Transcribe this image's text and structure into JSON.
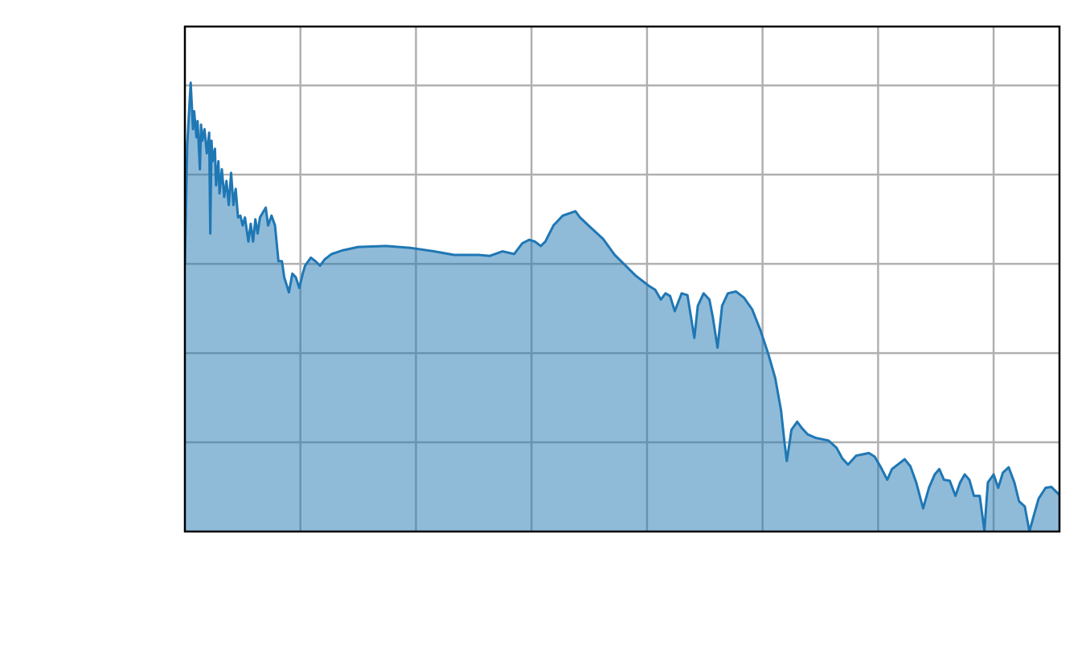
{
  "chart_data": {
    "type": "area",
    "color": "#1f77b4",
    "grid": true,
    "xlim": [
      0,
      7.57
    ],
    "ylim": [
      0,
      5.66
    ],
    "xticks": [
      1,
      2,
      3,
      4,
      5,
      6,
      7
    ],
    "yticks": [
      1,
      2,
      3,
      4,
      5
    ],
    "x": [
      0,
      0.02,
      0.05,
      0.07,
      0.08,
      0.1,
      0.11,
      0.13,
      0.14,
      0.15,
      0.17,
      0.19,
      0.21,
      0.22,
      0.23,
      0.24,
      0.26,
      0.27,
      0.29,
      0.3,
      0.32,
      0.34,
      0.36,
      0.38,
      0.4,
      0.42,
      0.44,
      0.46,
      0.48,
      0.5,
      0.52,
      0.55,
      0.57,
      0.59,
      0.61,
      0.63,
      0.65,
      0.7,
      0.72,
      0.75,
      0.78,
      0.81,
      0.84,
      0.86,
      0.9,
      0.93,
      0.96,
      0.99,
      1.02,
      1.04,
      1.09,
      1.13,
      1.17,
      1.21,
      1.27,
      1.36,
      1.5,
      1.74,
      1.95,
      2.16,
      2.33,
      2.54,
      2.64,
      2.75,
      2.85,
      2.92,
      2.98,
      3.03,
      3.08,
      3.12,
      3.19,
      3.27,
      3.38,
      3.42,
      3.51,
      3.62,
      3.72,
      3.83,
      3.9,
      3.97,
      4.02,
      4.07,
      4.12,
      4.16,
      4.2,
      4.24,
      4.3,
      4.35,
      4.41,
      4.44,
      4.49,
      4.54,
      4.57,
      4.61,
      4.65,
      4.7,
      4.77,
      4.84,
      4.91,
      4.98,
      5.05,
      5.11,
      5.16,
      5.19,
      5.21,
      5.25,
      5.3,
      5.34,
      5.39,
      5.46,
      5.57,
      5.64,
      5.69,
      5.74,
      5.81,
      5.92,
      5.97,
      6.02,
      6.08,
      6.12,
      6.18,
      6.23,
      6.28,
      6.33,
      6.39,
      6.44,
      6.49,
      6.53,
      6.57,
      6.62,
      6.67,
      6.71,
      6.75,
      6.79,
      6.83,
      6.88,
      6.92,
      6.95,
      7.0,
      7.04,
      7.08,
      7.13,
      7.18,
      7.22,
      7.27,
      7.31,
      7.35,
      7.39,
      7.45,
      7.5,
      7.57
    ],
    "values": [
      3.0,
      4.33,
      5.03,
      4.51,
      4.71,
      4.42,
      4.6,
      4.06,
      4.56,
      4.38,
      4.51,
      4.24,
      4.47,
      3.34,
      4.38,
      4.15,
      4.29,
      3.88,
      4.15,
      3.79,
      4.06,
      3.75,
      3.93,
      3.66,
      4.02,
      3.66,
      3.84,
      3.52,
      3.54,
      3.43,
      3.52,
      3.25,
      3.45,
      3.25,
      3.5,
      3.34,
      3.52,
      3.63,
      3.43,
      3.54,
      3.43,
      3.03,
      3.03,
      2.85,
      2.68,
      2.89,
      2.85,
      2.73,
      2.89,
      2.98,
      3.07,
      3.03,
      2.98,
      3.05,
      3.11,
      3.15,
      3.19,
      3.2,
      3.18,
      3.14,
      3.1,
      3.1,
      3.09,
      3.14,
      3.11,
      3.23,
      3.27,
      3.25,
      3.2,
      3.25,
      3.43,
      3.54,
      3.59,
      3.52,
      3.41,
      3.28,
      3.1,
      2.96,
      2.87,
      2.8,
      2.75,
      2.71,
      2.6,
      2.67,
      2.64,
      2.47,
      2.67,
      2.65,
      2.17,
      2.53,
      2.67,
      2.6,
      2.4,
      2.06,
      2.53,
      2.67,
      2.69,
      2.62,
      2.49,
      2.26,
      1.99,
      1.72,
      1.36,
      1.0,
      0.79,
      1.14,
      1.23,
      1.16,
      1.09,
      1.05,
      1.02,
      0.94,
      0.82,
      0.75,
      0.85,
      0.88,
      0.84,
      0.73,
      0.58,
      0.7,
      0.76,
      0.81,
      0.73,
      0.55,
      0.26,
      0.49,
      0.64,
      0.7,
      0.58,
      0.57,
      0.4,
      0.55,
      0.64,
      0.58,
      0.4,
      0.4,
      0.01,
      0.55,
      0.64,
      0.49,
      0.66,
      0.72,
      0.55,
      0.34,
      0.28,
      0,
      0.19,
      0.37,
      0.49,
      0.5,
      0.41
    ]
  }
}
